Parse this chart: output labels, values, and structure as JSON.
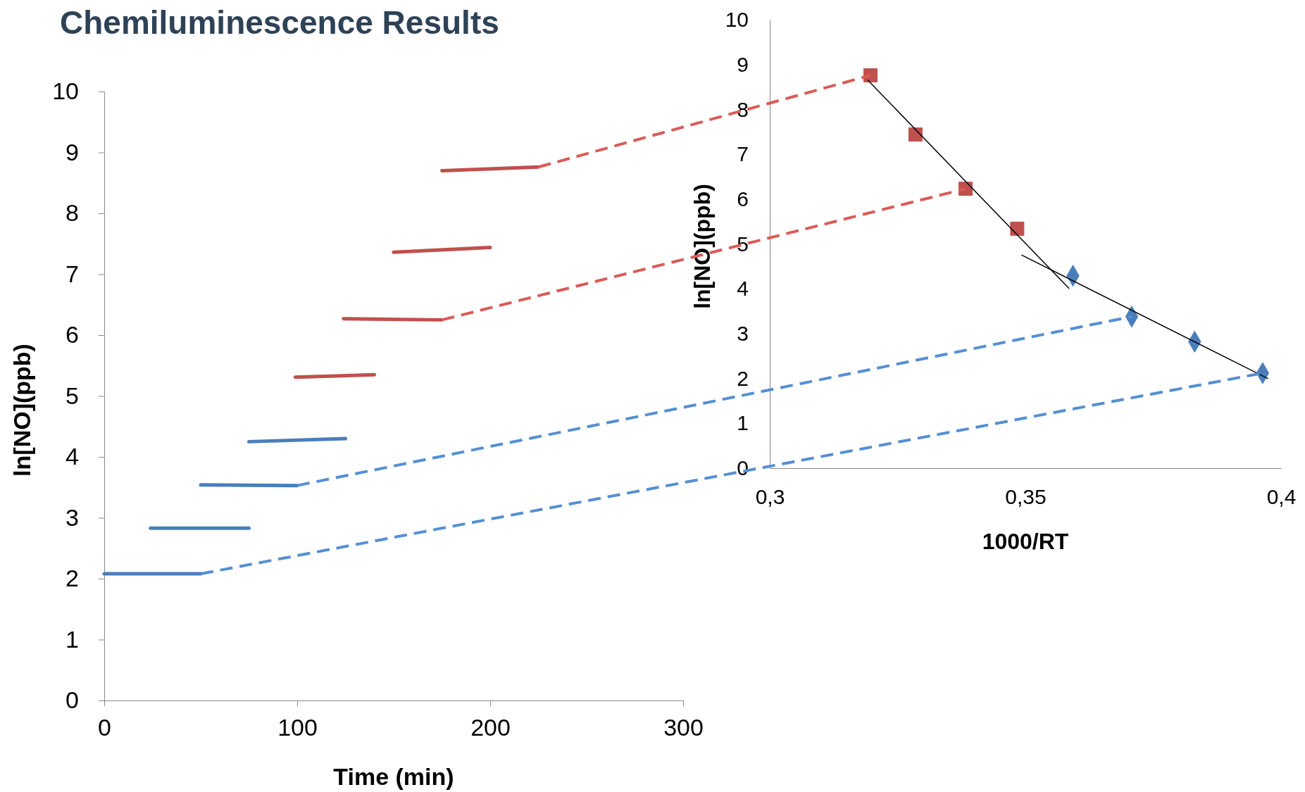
{
  "chart_data": [
    {
      "type": "line",
      "title": "Chemiluminescence Results",
      "xlabel": "Time (min)",
      "ylabel": "ln[NO](ppb)",
      "xlim": [
        0,
        300
      ],
      "ylim": [
        0,
        10
      ],
      "xticks": [
        0,
        100,
        200,
        300
      ],
      "yticks": [
        0,
        1,
        2,
        3,
        4,
        5,
        6,
        7,
        8,
        9,
        10
      ],
      "marker": "none",
      "series": [
        {
          "color": "#4a7ebb",
          "x": [
            0,
            50
          ],
          "values": [
            2.08,
            2.08
          ]
        },
        {
          "color": "#4a7ebb",
          "x": [
            24,
            75
          ],
          "values": [
            2.83,
            2.83
          ]
        },
        {
          "color": "#4a7ebb",
          "x": [
            50,
            100
          ],
          "values": [
            3.54,
            3.53
          ]
        },
        {
          "color": "#4a7ebb",
          "x": [
            75,
            125
          ],
          "values": [
            4.25,
            4.3
          ]
        },
        {
          "color": "#c0504d",
          "x": [
            99,
            140
          ],
          "values": [
            5.31,
            5.35
          ]
        },
        {
          "color": "#c0504d",
          "x": [
            124,
            175
          ],
          "values": [
            6.27,
            6.25
          ]
        },
        {
          "color": "#c0504d",
          "x": [
            150,
            200
          ],
          "values": [
            7.36,
            7.44
          ]
        },
        {
          "color": "#c0504d",
          "x": [
            175,
            225
          ],
          "values": [
            8.7,
            8.76
          ]
        }
      ]
    },
    {
      "type": "scatter",
      "xlabel": "1000/RT",
      "ylabel": "ln[NO](ppb)",
      "xlim": [
        0.3,
        0.4
      ],
      "ylim": [
        0,
        10
      ],
      "xticks": [
        {
          "value": 0.3,
          "label": "0,3"
        },
        {
          "value": 0.35,
          "label": "0,35"
        },
        {
          "value": 0.4,
          "label": "0,4"
        }
      ],
      "yticks": [
        0,
        1,
        2,
        3,
        4,
        5,
        6,
        7,
        8,
        9,
        10
      ],
      "series": [
        {
          "color": "#c0504d",
          "marker": "square",
          "x": [
            0.3197,
            0.3285,
            0.3383,
            0.3484
          ],
          "values": [
            8.76,
            7.44,
            6.23,
            5.34
          ]
        },
        {
          "color": "#4a7ebb",
          "marker": "diamond",
          "x": [
            0.3593,
            0.3708,
            0.3831,
            0.3964
          ],
          "values": [
            4.29,
            3.38,
            2.82,
            2.12
          ]
        },
        {
          "type": "line",
          "color": "#000000",
          "marker": "none",
          "x": [
            0.3192,
            0.3585
          ],
          "values": [
            8.65,
            4.01
          ]
        },
        {
          "type": "line",
          "color": "#000000",
          "marker": "none",
          "x": [
            0.3493,
            0.3974
          ],
          "values": [
            4.75,
            2.0
          ]
        }
      ]
    }
  ]
}
